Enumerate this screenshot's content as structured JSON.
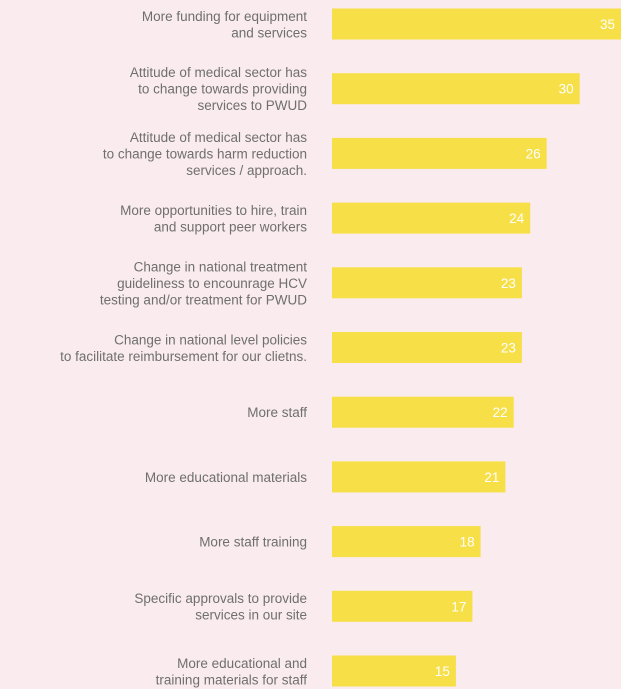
{
  "chart_data": {
    "type": "bar",
    "orientation": "horizontal",
    "title": "",
    "xlabel": "",
    "ylabel": "",
    "categories": [
      [
        "More funding for equipment",
        "and services"
      ],
      [
        "Attitude of medical sector has",
        "to change towards providing",
        "services to PWUD"
      ],
      [
        "Attitude of medical sector has",
        "to change towards harm reduction",
        "services / approach."
      ],
      [
        "More opportunities to hire, train",
        "and support peer workers"
      ],
      [
        "Change in national treatment",
        "guideliness to encounrage HCV",
        "testing and/or treatment for PWUD"
      ],
      [
        "Change in national level policies",
        "to facilitate reimbursement for our clietns."
      ],
      [
        "More staff"
      ],
      [
        "More educational materials"
      ],
      [
        "More staff training"
      ],
      [
        "Specific approvals to provide",
        "services in our site"
      ],
      [
        "More educational and",
        "training materials for staff"
      ]
    ],
    "values": [
      35,
      30,
      26,
      24,
      23,
      23,
      22,
      21,
      18,
      17,
      15
    ],
    "xlim": [
      0,
      35
    ],
    "grid": false,
    "legend": "none",
    "colors": {
      "bar": "#f7df48",
      "value_text": "#ffffff",
      "label_text": "#6f6f6f",
      "background": "#f9ebee"
    }
  }
}
